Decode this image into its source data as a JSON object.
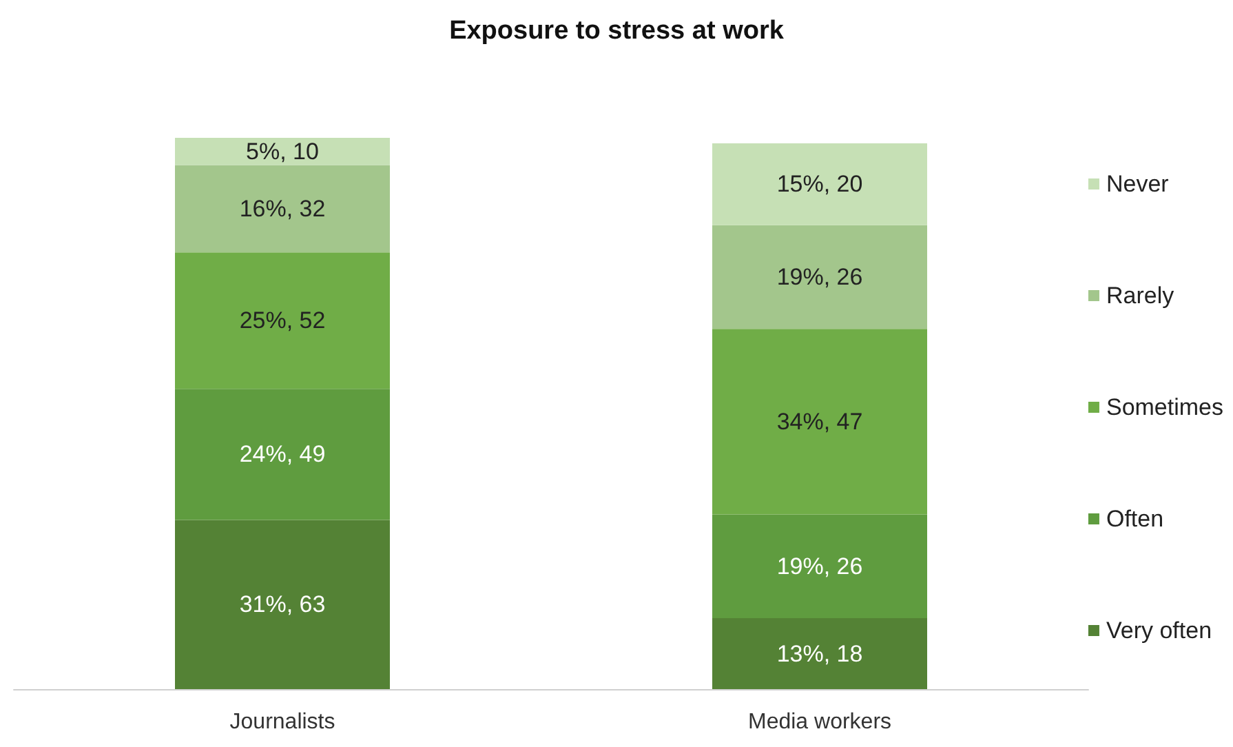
{
  "chart_data": {
    "type": "bar",
    "title": "Exposure to stress at work",
    "categories": [
      "Journalists",
      "Media workers"
    ],
    "stacked": true,
    "legend": "right",
    "series": [
      {
        "name": "Very often",
        "color": "#548235",
        "values": [
          31,
          13
        ],
        "value_labels": [
          "31%, 63",
          "13%, 18"
        ]
      },
      {
        "name": "Often",
        "color": "#5f9c3f",
        "values": [
          24,
          19
        ],
        "value_labels": [
          "24%, 49",
          "19%, 26"
        ]
      },
      {
        "name": "Sometimes",
        "color": "#70ad47",
        "values": [
          25,
          34
        ],
        "value_labels": [
          "25%, 52",
          "34%, 47"
        ]
      },
      {
        "name": "Rarely",
        "color": "#a3c68c",
        "values": [
          16,
          19
        ],
        "value_labels": [
          "16%, 32",
          "19%, 26"
        ]
      },
      {
        "name": "Never",
        "color": "#c6e0b5",
        "values": [
          5,
          15
        ],
        "value_labels": [
          "5%, 10",
          "15%, 20"
        ]
      }
    ]
  }
}
